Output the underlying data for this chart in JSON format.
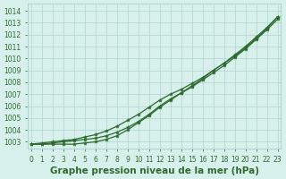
{
  "xlabel": "Graphe pression niveau de la mer (hPa)",
  "x_ticks": [
    0,
    1,
    2,
    3,
    4,
    5,
    6,
    7,
    8,
    9,
    10,
    11,
    12,
    13,
    14,
    15,
    16,
    17,
    18,
    19,
    20,
    21,
    22,
    23
  ],
  "y_ticks": [
    1003,
    1004,
    1005,
    1006,
    1007,
    1008,
    1009,
    1010,
    1011,
    1012,
    1013,
    1014
  ],
  "ylim": [
    1002.4,
    1014.6
  ],
  "xlim": [
    -0.3,
    23.3
  ],
  "line1_y": [
    1002.8,
    1002.9,
    1003.0,
    1003.1,
    1003.2,
    1003.4,
    1003.6,
    1003.9,
    1004.3,
    1004.8,
    1005.3,
    1005.9,
    1006.5,
    1007.0,
    1007.4,
    1007.9,
    1008.4,
    1009.0,
    1009.6,
    1010.2,
    1010.9,
    1011.7,
    1012.5,
    1013.5
  ],
  "line2_y": [
    1002.8,
    1002.8,
    1002.9,
    1003.0,
    1003.1,
    1003.2,
    1003.3,
    1003.5,
    1003.8,
    1004.2,
    1004.7,
    1005.3,
    1006.0,
    1006.6,
    1007.1,
    1007.6,
    1008.2,
    1008.8,
    1009.4,
    1010.1,
    1010.8,
    1011.6,
    1012.4,
    1013.3
  ],
  "line3_y": [
    1002.8,
    1002.8,
    1002.8,
    1002.8,
    1002.8,
    1002.9,
    1003.0,
    1003.2,
    1003.5,
    1004.0,
    1004.6,
    1005.2,
    1005.9,
    1006.5,
    1007.1,
    1007.7,
    1008.3,
    1009.0,
    1009.6,
    1010.3,
    1011.0,
    1011.8,
    1012.6,
    1013.5
  ],
  "line_color": "#2d6a2d",
  "bg_color": "#d8f0ec",
  "grid_color": "#b0d4cf",
  "label_color": "#2d6a2d",
  "tick_fontsize": 5.5,
  "xlabel_fontsize": 7.5
}
